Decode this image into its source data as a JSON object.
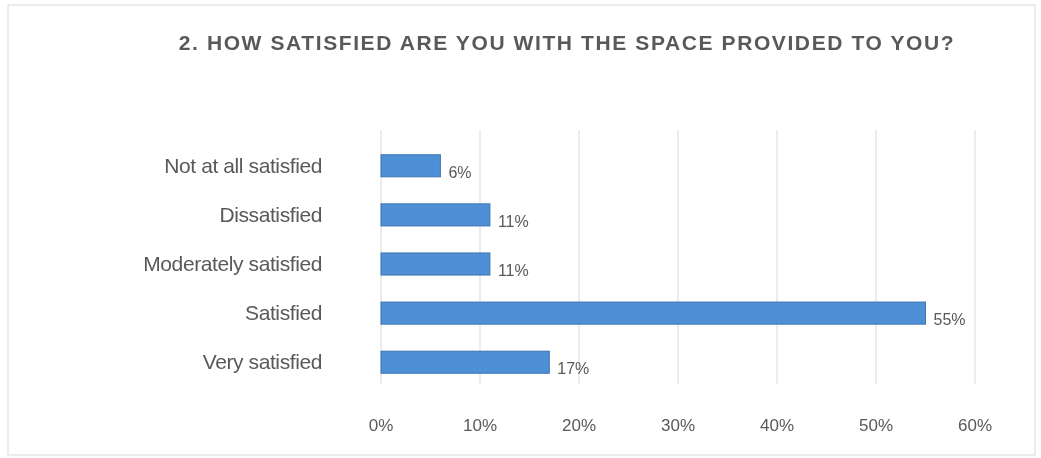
{
  "chart_data": {
    "type": "bar",
    "orientation": "horizontal",
    "title": "2. HOW SATISFIED ARE YOU WITH THE SPACE PROVIDED TO YOU?",
    "categories": [
      "Not at all satisfied",
      "Dissatisfied",
      "Moderately satisfied",
      "Satisfied",
      "Very satisfied"
    ],
    "values": [
      6,
      11,
      11,
      55,
      17
    ],
    "value_labels": [
      "6%",
      "11%",
      "11%",
      "55%",
      "17%"
    ],
    "color": "#4f8fd6",
    "xlim": [
      0,
      60
    ],
    "xticks": [
      {
        "value": 0,
        "label": "0%"
      },
      {
        "value": 10,
        "label": "10%"
      },
      {
        "value": 20,
        "label": "20%"
      },
      {
        "value": 30,
        "label": "30%"
      },
      {
        "value": 40,
        "label": "40%"
      },
      {
        "value": 50,
        "label": "50%"
      },
      {
        "value": 60,
        "label": "60%"
      }
    ],
    "grid": "x"
  }
}
